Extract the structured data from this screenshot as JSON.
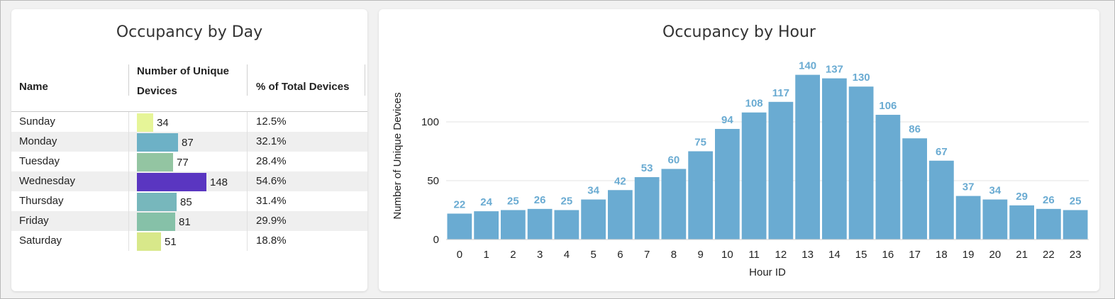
{
  "day_panel": {
    "title": "Occupancy by Day",
    "columns": [
      "Name",
      "Number of Unique Devices",
      "% of Total Devices"
    ],
    "col_header_line1": "Number of Unique",
    "col_header_line2": "Devices",
    "rows": [
      {
        "name": "Sunday",
        "devices": 34,
        "devices_label": "34",
        "pct": "12.5%",
        "color": "#e6f598"
      },
      {
        "name": "Monday",
        "devices": 87,
        "devices_label": "87",
        "pct": "32.1%",
        "color": "#6db1c6"
      },
      {
        "name": "Tuesday",
        "devices": 77,
        "devices_label": "77",
        "pct": "28.4%",
        "color": "#93c5a2"
      },
      {
        "name": "Wednesday",
        "devices": 148,
        "devices_label": "148",
        "pct": "54.6%",
        "color": "#5a36c1"
      },
      {
        "name": "Thursday",
        "devices": 85,
        "devices_label": "85",
        "pct": "31.4%",
        "color": "#77b7bc"
      },
      {
        "name": "Friday",
        "devices": 81,
        "devices_label": "81",
        "pct": "29.9%",
        "color": "#86c1a8"
      },
      {
        "name": "Saturday",
        "devices": 51,
        "devices_label": "51",
        "pct": "18.8%",
        "color": "#d8e88a"
      }
    ],
    "max_devices": 148
  },
  "chart_data": {
    "type": "bar",
    "title": "Occupancy by Hour",
    "xlabel": "Hour ID",
    "ylabel": "Number of Unique Devices",
    "categories": [
      "0",
      "1",
      "2",
      "3",
      "4",
      "5",
      "6",
      "7",
      "8",
      "9",
      "10",
      "11",
      "12",
      "13",
      "14",
      "15",
      "16",
      "17",
      "18",
      "19",
      "20",
      "21",
      "22",
      "23"
    ],
    "values": [
      22,
      24,
      25,
      26,
      25,
      34,
      42,
      53,
      60,
      75,
      94,
      108,
      117,
      140,
      137,
      130,
      106,
      86,
      67,
      37,
      34,
      29,
      26,
      25
    ],
    "yticks": [
      "0",
      "50",
      "100"
    ],
    "ylim": [
      0,
      160
    ],
    "grid": true,
    "bar_color": "#6aabd2",
    "label_color": "#6aabd2"
  }
}
